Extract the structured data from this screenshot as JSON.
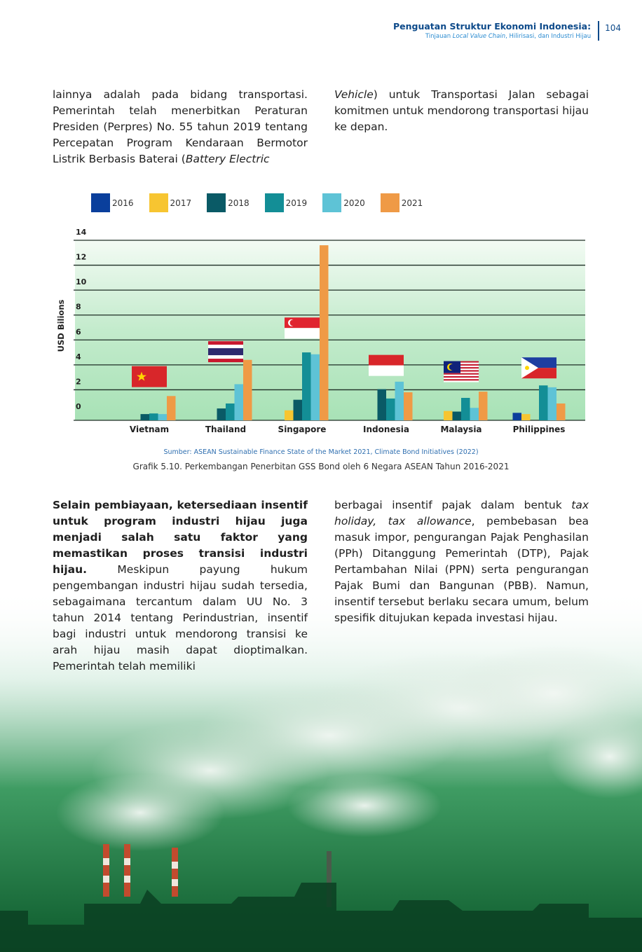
{
  "header": {
    "title": "Penguatan Struktur Ekonomi Indonesia:",
    "subtitle_prefix": "Tinjauan ",
    "subtitle_italic": "Local Value Chain",
    "subtitle_suffix": ", Hilirisasi, dan Industri Hijau",
    "page_number": "104"
  },
  "text_top": {
    "left": "lainnya adalah pada bidang transportasi. Pemerintah telah menerbitkan Peraturan Presiden (Perpres) No. 55 tahun 2019 tentang Percepatan Program Kendaraan Bermotor Listrik Berbasis Baterai (",
    "left_italic": "Battery Electric",
    "right_italic": "Vehicle",
    "right": ") untuk Transportasi Jalan sebagai komitmen untuk mendorong transportasi hijau ke depan."
  },
  "text_bottom": {
    "left_bold": "Selain pembiayaan, ketersediaan insentif untuk program industri hijau juga menjadi salah satu faktor yang memastikan proses transisi industri hijau.",
    "left": " Meskipun payung hukum pengembangan industri hijau sudah tersedia, sebagaimana tercantum dalam UU No. 3 tahun 2014 tentang Perindustrian, insentif bagi industri untuk mendorong transisi ke arah hijau masih dapat dioptimalkan. Pemerintah telah memiliki",
    "right_1": "berbagai insentif pajak dalam bentuk ",
    "right_italic": "tax holiday, tax allowance",
    "right_2": ", pembebasan bea masuk impor, pengurangan Pajak Penghasilan (PPh) Ditanggung Pemerintah (DTP), Pajak Pertambahan Nilai (PPN) serta pengurangan Pajak Bumi dan Bangunan (PBB). Namun, insentif tersebut berlaku secara umum, belum spesifik ditujukan kepada investasi hijau."
  },
  "chart_data": {
    "type": "bar",
    "title": "",
    "xlabel": "",
    "ylabel": "USD Bilions",
    "ylim": [
      0,
      14
    ],
    "yticks": [
      0,
      2,
      4,
      6,
      8,
      10,
      12,
      14
    ],
    "grid": true,
    "legend_position": "top-left",
    "categories": [
      "Vietnam",
      "Thailand",
      "Singapore",
      "Indonesia",
      "Malaysia",
      "Philippines"
    ],
    "series": [
      {
        "name": "2016",
        "color": "#0a3f9c",
        "values": [
          0,
          0,
          0,
          0,
          0,
          0.15
        ]
      },
      {
        "name": "2017",
        "color": "#f7c531",
        "values": [
          0,
          0,
          0.35,
          0,
          0.3,
          0.05
        ]
      },
      {
        "name": "2018",
        "color": "#0a5a66",
        "values": [
          0.05,
          0.5,
          1.2,
          2.05,
          0.25,
          0
        ]
      },
      {
        "name": "2019",
        "color": "#138e96",
        "values": [
          0.1,
          0.9,
          5.0,
          1.3,
          1.35,
          2.35
        ]
      },
      {
        "name": "2020",
        "color": "#5ec3d6",
        "values": [
          0.05,
          2.45,
          4.85,
          2.65,
          0.55,
          2.2
        ]
      },
      {
        "name": "2021",
        "color": "#ef9a46",
        "values": [
          1.5,
          4.4,
          13.6,
          1.8,
          1.85,
          0.9
        ]
      }
    ],
    "flags": [
      "vietnam-flag",
      "thailand-flag",
      "singapore-flag",
      "indonesia-flag",
      "malaysia-flag",
      "philippines-flag"
    ]
  },
  "caption": {
    "source": "Sumber: ASEAN Sustainable Finance State of the Market 2021, Climate Bond Initiatives (2022)",
    "title": "Grafik 5.10. Perkembangan Penerbitan GSS Bond oleh 6 Negara ASEAN Tahun 2016-2021"
  }
}
